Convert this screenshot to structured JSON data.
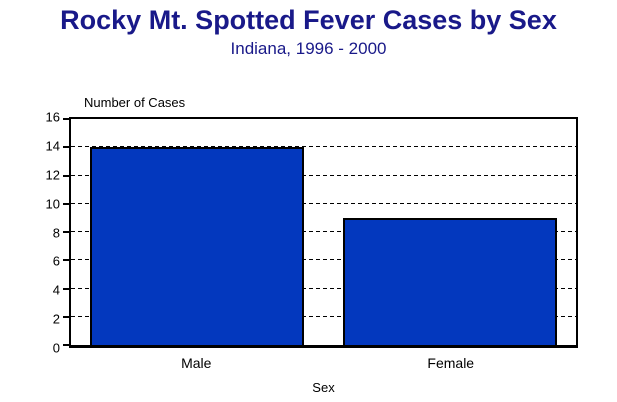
{
  "chart_data": {
    "type": "bar",
    "title": "Rocky Mt. Spotted Fever Cases by Sex",
    "subtitle": "Indiana, 1996 - 2000",
    "ylabel": "Number of Cases",
    "xlabel": "Sex",
    "categories": [
      "Male",
      "Female"
    ],
    "values": [
      14,
      9
    ],
    "ylim": [
      0,
      16
    ],
    "yticks": [
      0,
      2,
      4,
      6,
      8,
      10,
      12,
      14,
      16
    ],
    "grid": "dashed-horizontal",
    "legend_position": "none",
    "colors": {
      "title_color": "#191989",
      "bar_fill": "#0338BE",
      "bar_border": "#000000",
      "axis_color": "#000000",
      "grid_color": "#000000",
      "text_color": "#000000",
      "background": "#FFFFFF"
    }
  }
}
